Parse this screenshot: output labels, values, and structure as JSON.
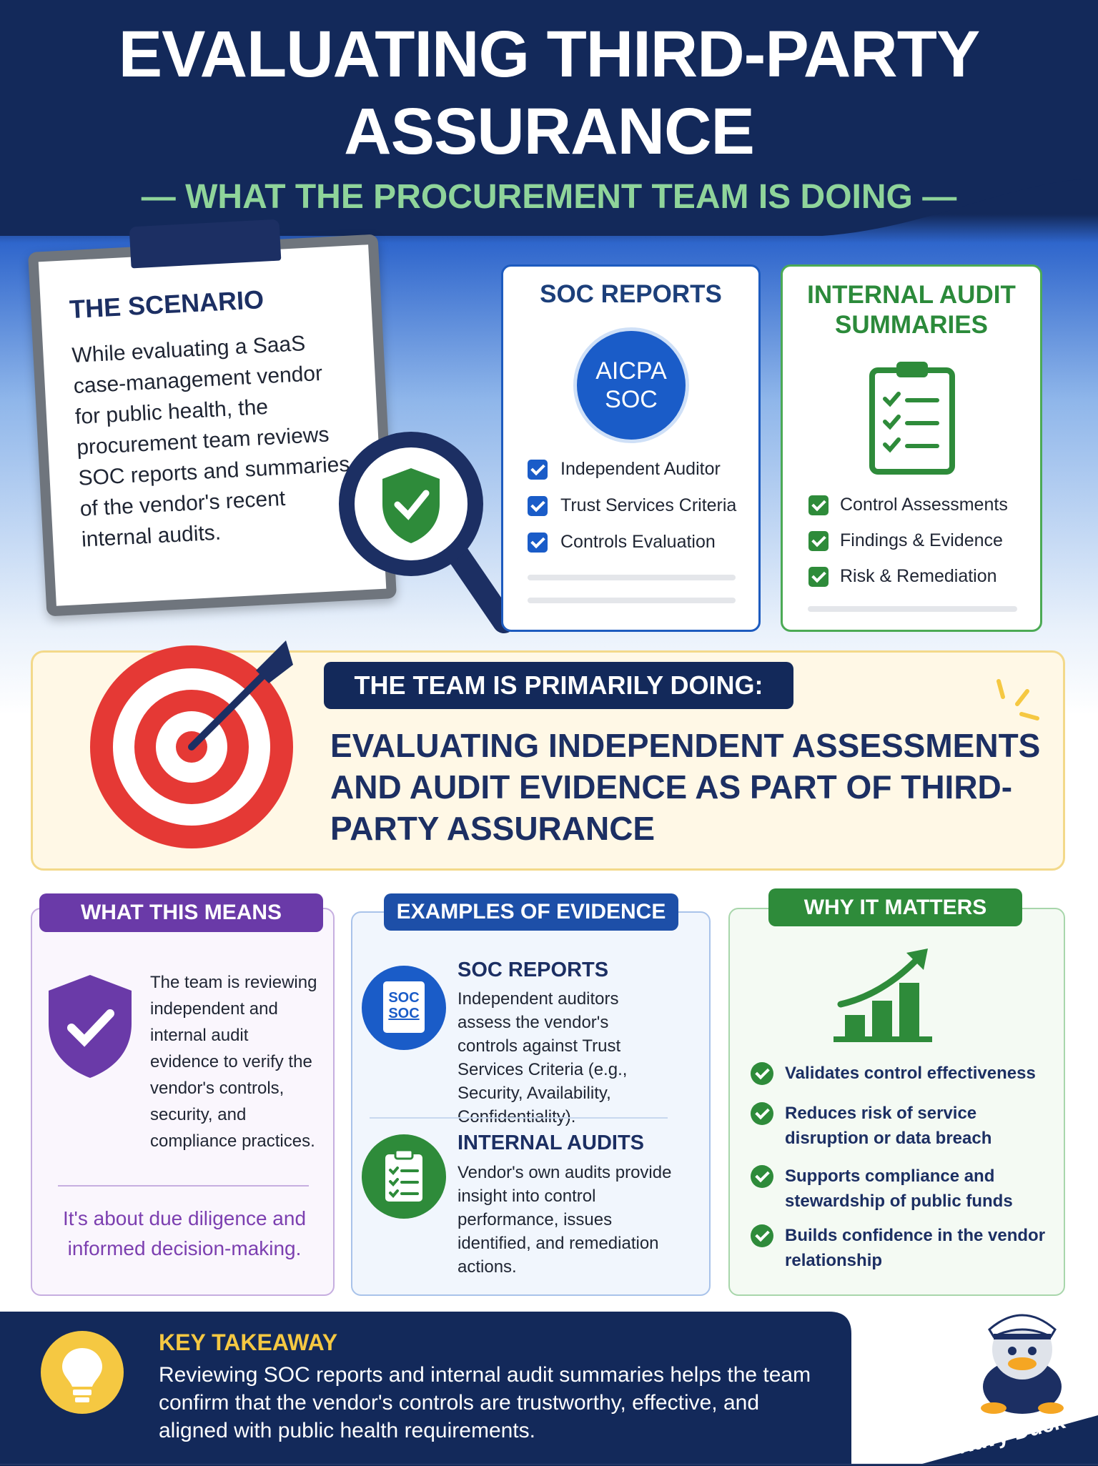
{
  "header": {
    "title_line1": "EVALUATING THIRD-PARTY",
    "title_line2": "ASSURANCE",
    "subtitle": "— WHAT THE PROCUREMENT TEAM IS DOING —"
  },
  "scenario": {
    "heading": "THE SCENARIO",
    "text": "While evaluating a SaaS case-management vendor for public health, the procurement team reviews SOC reports and summaries of the vendor's recent internal audits."
  },
  "soc_card": {
    "heading": "SOC REPORTS",
    "badge_line1": "AICPA",
    "badge_line2": "SOC",
    "items": [
      "Independent Auditor",
      "Trust Services Criteria",
      "Controls Evaluation"
    ]
  },
  "audit_card": {
    "heading": "INTERNAL AUDIT SUMMARIES",
    "items": [
      "Control Assessments",
      "Findings & Evidence",
      "Risk & Remediation"
    ]
  },
  "primary": {
    "label": "THE TEAM IS PRIMARILY DOING:",
    "statement": "EVALUATING INDEPENDENT ASSESSMENTS AND AUDIT EVIDENCE AS PART OF THIRD-PARTY ASSURANCE"
  },
  "meaning": {
    "heading": "WHAT THIS MEANS",
    "text": "The team is reviewing independent and internal audit evidence to verify the vendor's controls, security, and compliance practices.",
    "note": "It's about due diligence and informed decision-making."
  },
  "evidence": {
    "heading": "EXAMPLES OF EVIDENCE",
    "items": [
      {
        "icon_text": [
          "SOC",
          "SOC"
        ],
        "title": "SOC REPORTS",
        "text": "Independent auditors assess the vendor's controls against Trust Services Criteria (e.g., Security, Availability, Confidentiality)."
      },
      {
        "title": "INTERNAL AUDITS",
        "text": "Vendor's own audits provide insight into control performance, issues identified, and remediation actions."
      }
    ]
  },
  "matters": {
    "heading": "WHY IT MATTERS",
    "items": [
      "Validates control effectiveness",
      "Reduces risk of service disruption or data breach",
      "Supports compliance and stewardship of public funds",
      "Builds confidence in the vendor relationship"
    ]
  },
  "takeaway": {
    "heading": "KEY TAKEAWAY",
    "text": "Reviewing SOC reports and internal audit summaries helps the team confirm that the vendor's controls are trustworthy, effective, and aligned with public health requirements."
  },
  "mascot": {
    "caption": "“Navy Duck”"
  }
}
